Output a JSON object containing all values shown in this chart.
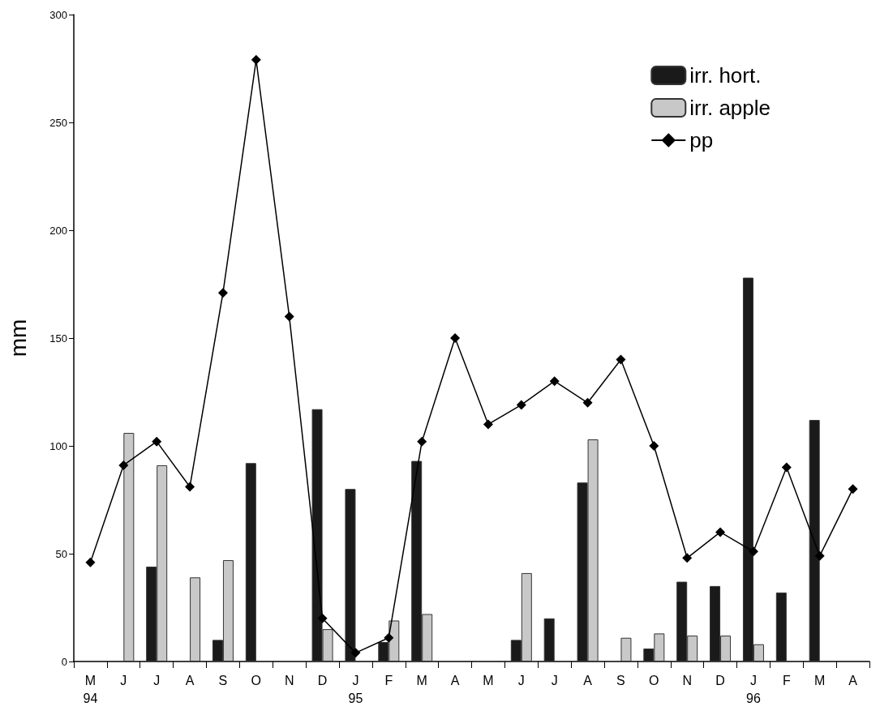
{
  "chart_data": {
    "type": "bar",
    "ylabel": "mm",
    "categories": [
      "M\n94",
      "J",
      "J",
      "A",
      "S",
      "O",
      "N",
      "D",
      "J\n95",
      "F",
      "M",
      "A",
      "M",
      "J",
      "J",
      "A",
      "S",
      "O",
      "N",
      "D",
      "J\n96",
      "F",
      "M",
      "A"
    ],
    "series": [
      {
        "name": "irr. hort.",
        "color": "#1a1a1a",
        "values": [
          null,
          null,
          44,
          null,
          10,
          92,
          null,
          117,
          80,
          9,
          93,
          null,
          null,
          10,
          20,
          83,
          null,
          6,
          37,
          35,
          178,
          32,
          112,
          null
        ]
      },
      {
        "name": "irr. apple",
        "color": "#c8c8c8",
        "values": [
          null,
          106,
          91,
          39,
          47,
          null,
          null,
          15,
          null,
          19,
          22,
          null,
          null,
          41,
          null,
          103,
          11,
          13,
          12,
          12,
          8,
          null,
          null,
          null
        ]
      },
      {
        "name": "pp",
        "type": "line",
        "color": "#000000",
        "values": [
          46,
          91,
          102,
          81,
          171,
          279,
          160,
          20,
          4,
          11,
          102,
          150,
          110,
          119,
          130,
          120,
          140,
          100,
          48,
          60,
          51,
          90,
          49,
          80
        ]
      }
    ],
    "ylim": [
      0,
      300
    ],
    "yticks": [
      0,
      50,
      100,
      150,
      200,
      250,
      300
    ],
    "grid": false,
    "legend": "top right",
    "marker": "diamond",
    "line_style": "solid"
  }
}
